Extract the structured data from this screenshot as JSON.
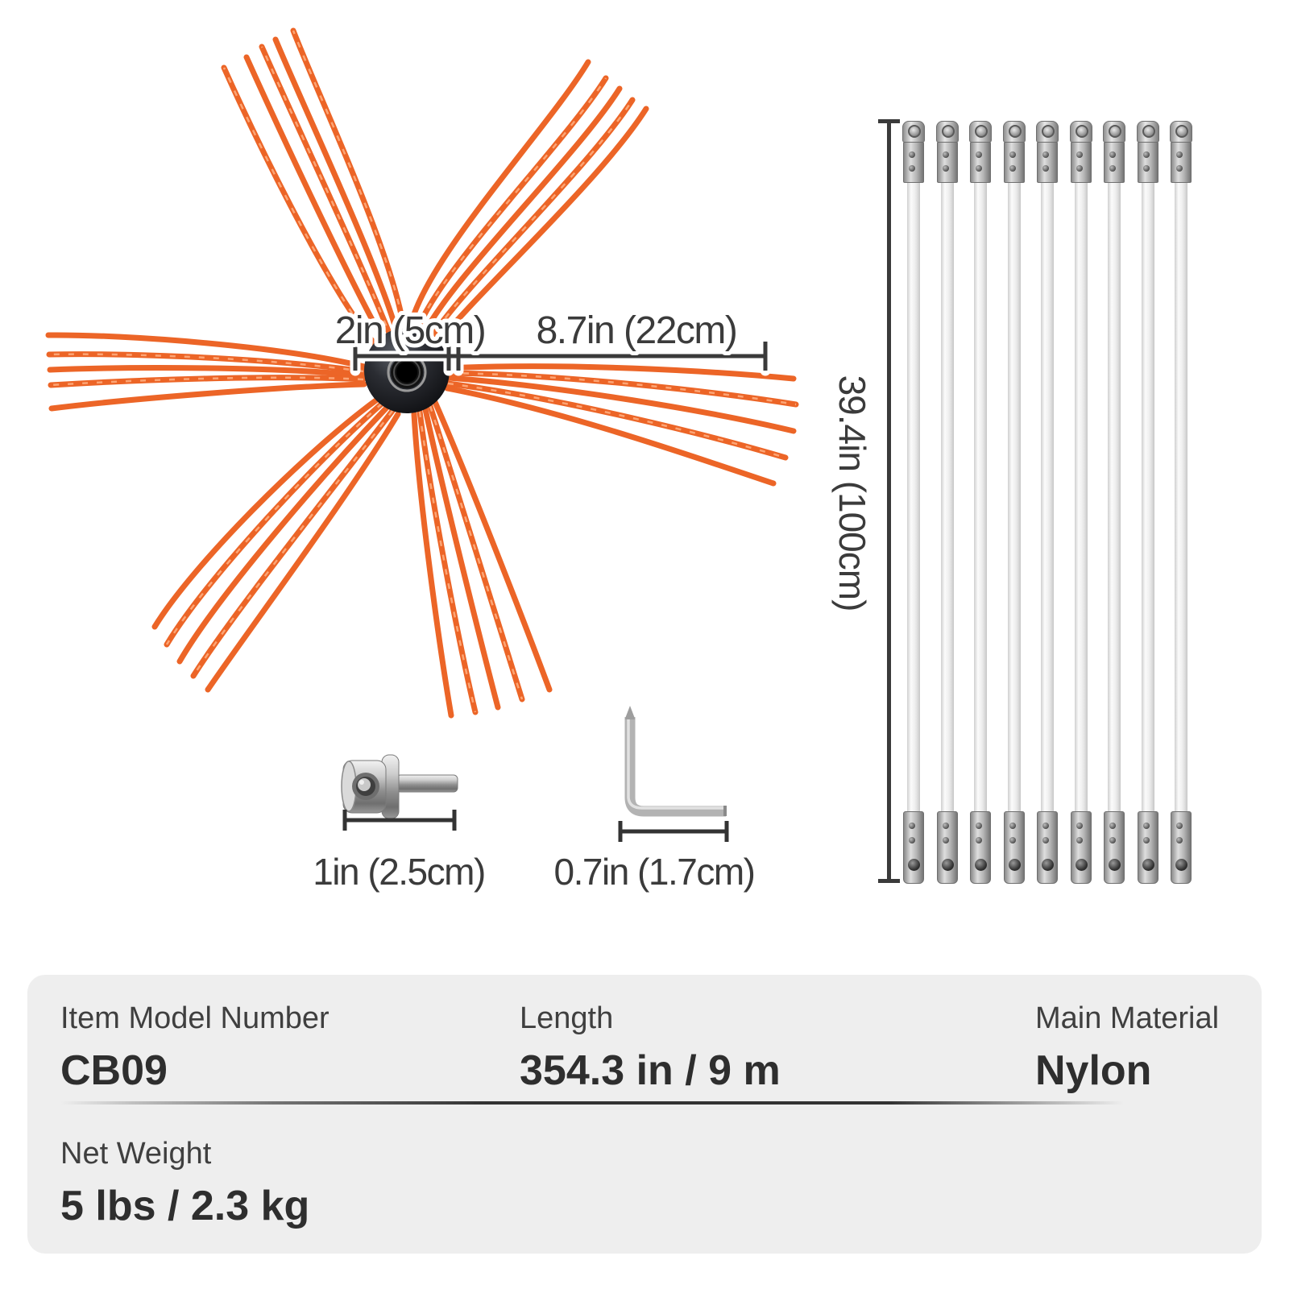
{
  "product": {
    "brush": {
      "hub_diameter": "2in (5cm)",
      "bristle_length": "8.7in (22cm)"
    },
    "rods": {
      "count": 9,
      "length": "39.4in (100cm)"
    },
    "adapter": {
      "length": "1in (2.5cm)"
    },
    "hex_key": {
      "length": "0.7in (1.7cm)"
    }
  },
  "specs": [
    {
      "label": "Item Model Number",
      "value": "CB09"
    },
    {
      "label": "Length",
      "value": "354.3 in / 9 m"
    },
    {
      "label": "Main Material",
      "value": "Nylon"
    },
    {
      "label": "Net Weight",
      "value": "5 lbs / 2.3 kg"
    }
  ],
  "colors": {
    "bristle_orange": "#ec6527",
    "bristle_highlight": "#ffb183",
    "annotation_dark": "#3a3a3a",
    "card_background": "#eeeeee"
  }
}
